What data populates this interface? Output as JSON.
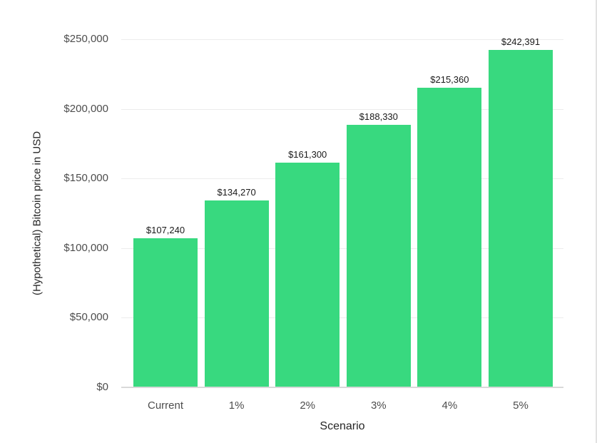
{
  "chart_data": {
    "type": "bar",
    "title": "",
    "xlabel": "Scenario",
    "ylabel": "(Hypothetical) Bitcoin price in USD",
    "categories": [
      "Current",
      "1%",
      "2%",
      "3%",
      "4%",
      "5%"
    ],
    "values": [
      107240,
      134270,
      161300,
      188330,
      215360,
      242391
    ],
    "bar_labels": [
      "$107,240",
      "$134,270",
      "$161,300",
      "$188,330",
      "$215,360",
      "$242,391"
    ],
    "y_ticks": [
      {
        "value": 0,
        "label": "$0"
      },
      {
        "value": 50000,
        "label": "$50,000"
      },
      {
        "value": 100000,
        "label": "$100,000"
      },
      {
        "value": 150000,
        "label": "$150,000"
      },
      {
        "value": 200000,
        "label": "$200,000"
      },
      {
        "value": 250000,
        "label": "$250,000"
      }
    ],
    "ylim": [
      0,
      250000
    ],
    "grid": true,
    "legend": false,
    "bar_color": "#38d97f",
    "gridline_color": "#ececec",
    "baseline_color": "#d9d9d9"
  }
}
